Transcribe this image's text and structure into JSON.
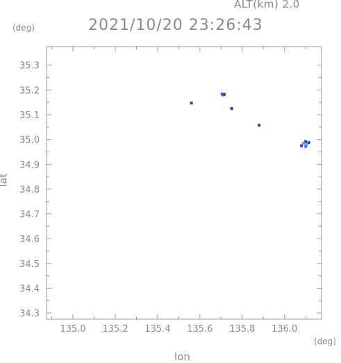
{
  "header": {
    "alt_label": "ALT(km)  2.0",
    "timestamp": "2021/10/20 23:26:43"
  },
  "chart_data": {
    "type": "scatter",
    "title": "2021/10/20 23:26:43",
    "xlabel": "lon",
    "ylabel": "lat",
    "x_unit": "(deg)",
    "y_unit": "(deg)",
    "xlim": [
      134.875,
      136.175
    ],
    "ylim": [
      34.275,
      35.375
    ],
    "x_ticks": [
      "135.0",
      "135.2",
      "135.4",
      "135.6",
      "135.8",
      "136.0"
    ],
    "y_ticks": [
      "34.3",
      "34.4",
      "34.5",
      "34.6",
      "34.7",
      "34.8",
      "34.9",
      "35.0",
      "35.1",
      "35.2",
      "35.3"
    ],
    "grid": false,
    "colors": {
      "axis": "#9a9a9a",
      "echo_dark": "#2b3be0",
      "echo_light": "#5aa0f0"
    },
    "points": [
      {
        "lon": 135.56,
        "lat": 35.147,
        "color": "#2b3be0"
      },
      {
        "lon": 135.705,
        "lat": 35.183,
        "color": "#2b3be0"
      },
      {
        "lon": 135.71,
        "lat": 35.18,
        "color": "#4a6ee8"
      },
      {
        "lon": 135.715,
        "lat": 35.182,
        "color": "#2b3be0"
      },
      {
        "lon": 135.75,
        "lat": 35.125,
        "color": "#2b3be0"
      },
      {
        "lon": 135.88,
        "lat": 35.058,
        "color": "#2b3be0"
      },
      {
        "lon": 136.08,
        "lat": 34.975,
        "color": "#2b3be0"
      },
      {
        "lon": 136.09,
        "lat": 34.985,
        "color": "#5aa0f0"
      },
      {
        "lon": 136.1,
        "lat": 34.992,
        "color": "#2b3be0"
      },
      {
        "lon": 136.105,
        "lat": 34.98,
        "color": "#5aa0f0"
      },
      {
        "lon": 136.115,
        "lat": 34.988,
        "color": "#2b3be0"
      },
      {
        "lon": 136.1,
        "lat": 34.972,
        "color": "#4a6ee8"
      }
    ]
  }
}
